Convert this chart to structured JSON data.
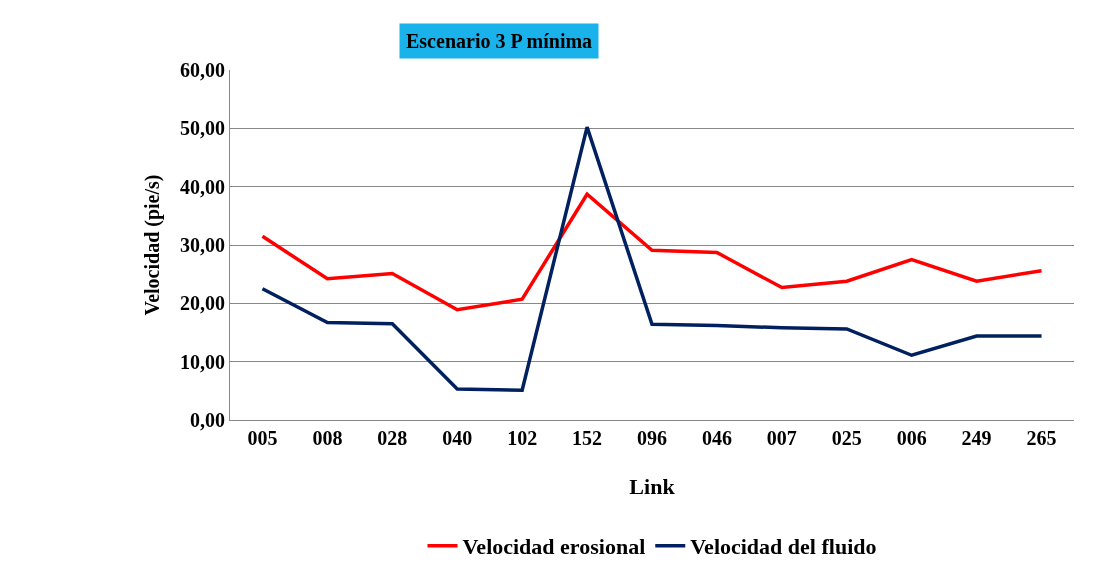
{
  "chart_data": {
    "type": "line",
    "title": "Escenario 3 P mínima",
    "xlabel": "Link",
    "ylabel": "Velocidad (pie/s)",
    "categories": [
      "005",
      "008",
      "028",
      "040",
      "102",
      "152",
      "096",
      "046",
      "007",
      "025",
      "006",
      "249",
      "265"
    ],
    "series": [
      {
        "name": "Velocidad erosional",
        "color": "#ff0000",
        "values": [
          31.5,
          24.2,
          25.1,
          18.9,
          20.7,
          38.7,
          29.1,
          28.7,
          22.7,
          23.8,
          27.5,
          23.8,
          25.6
        ]
      },
      {
        "name": "Velocidad del fluido",
        "color": "#002060",
        "values": [
          22.5,
          16.7,
          16.5,
          5.3,
          5.1,
          50.2,
          16.4,
          16.2,
          15.8,
          15.6,
          11.1,
          14.4,
          14.4
        ]
      }
    ],
    "ylim": [
      0,
      60
    ],
    "yticks": [
      {
        "value": 0,
        "label": "0,00"
      },
      {
        "value": 10,
        "label": "10,00"
      },
      {
        "value": 20,
        "label": "20,00"
      },
      {
        "value": 30,
        "label": "30,00"
      },
      {
        "value": 40,
        "label": "40,00"
      },
      {
        "value": 50,
        "label": "50,00"
      },
      {
        "value": 60,
        "label": "60,00"
      }
    ],
    "grid": "y",
    "legend": "bottom",
    "marker": "none",
    "line_style": "solid"
  }
}
